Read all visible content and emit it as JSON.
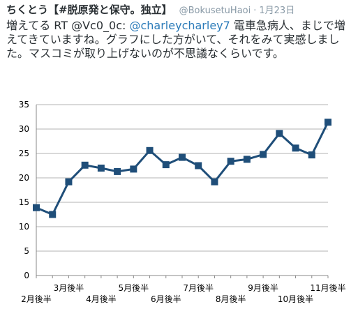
{
  "tweet": {
    "author_name": "ちくとう【#脱原発と保守。独立】",
    "handle": "@BokusetuHaoi",
    "separator": "·",
    "time": "1月23日",
    "text_before": "増えてる RT @Vc0_0c: ",
    "mention": "@charleycharley7",
    "text_after": " 電車急病人、まじで増えてきていますね。グラフにした方がいて、それをみて実感しました。マスコミが取り上げないのが不思議なくらいです。"
  },
  "colors": {
    "link": "#2b7bb9",
    "muted": "#8899a6",
    "text": "#292f33",
    "series": "#1f4e79",
    "grid": "#b3b3b3"
  },
  "chart_data": {
    "type": "line",
    "title": "",
    "xlabel": "",
    "ylabel": "",
    "ylim": [
      0,
      35
    ],
    "yticks": [
      0,
      5,
      10,
      15,
      20,
      25,
      30,
      35
    ],
    "grid": true,
    "legend": "none",
    "categories": [
      "2月後半",
      "",
      "3月後半",
      "",
      "4月後半",
      "",
      "5月後半",
      "",
      "6月後半",
      "",
      "7月後半",
      "",
      "8月後半",
      "",
      "9月後半",
      "",
      "10月後半",
      "",
      "11月後半"
    ],
    "tick_labels": [
      {
        "index": 0,
        "text": "2月後半",
        "row": 2
      },
      {
        "index": 2,
        "text": "3月後半",
        "row": 1
      },
      {
        "index": 4,
        "text": "4月後半",
        "row": 2
      },
      {
        "index": 6,
        "text": "5月後半",
        "row": 1
      },
      {
        "index": 8,
        "text": "6月後半",
        "row": 2
      },
      {
        "index": 10,
        "text": "7月後半",
        "row": 1
      },
      {
        "index": 12,
        "text": "8月後半",
        "row": 2
      },
      {
        "index": 14,
        "text": "9月後半",
        "row": 1
      },
      {
        "index": 16,
        "text": "10月後半",
        "row": 2
      },
      {
        "index": 18,
        "text": "11月後半",
        "row": 1
      }
    ],
    "series": [
      {
        "values": [
          13.9,
          12.5,
          19.2,
          22.6,
          22.0,
          21.3,
          21.8,
          25.6,
          22.7,
          24.2,
          22.5,
          19.2,
          23.4,
          23.8,
          24.8,
          29.1,
          26.1,
          24.7,
          31.4
        ]
      }
    ]
  }
}
